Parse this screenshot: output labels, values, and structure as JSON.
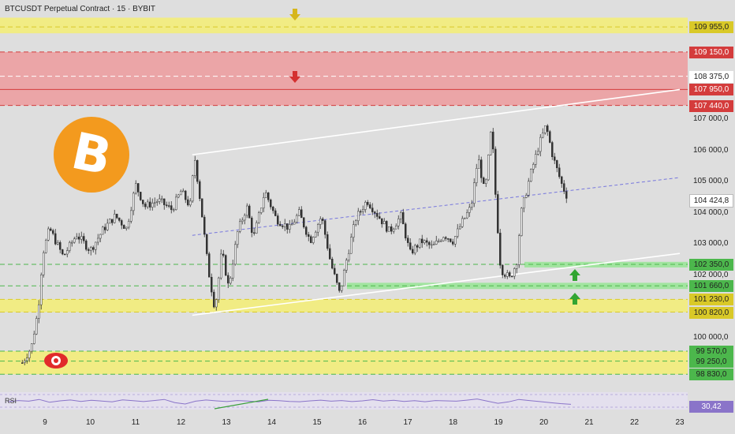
{
  "header": {
    "title": "BTCUSDT Perpetual Contract · 15 · BYBIT"
  },
  "indicator": {
    "label": "RSI",
    "value": "30,42"
  },
  "colors": {
    "zone_yellow": "#f1ec7e",
    "zone_red": "#eba1a3",
    "zone_green": "#9ee49c",
    "red_line": "#e04848",
    "candle_up": "#333333",
    "candle_down": "#333333",
    "trend_white": "#ffffff",
    "mid_line": "#7777dd",
    "rsi_line": "#8a74c9"
  },
  "icons": {
    "logo": "bitcoin-logo",
    "eye": "eye-icon",
    "arrows": [
      "arrow-down-icon",
      "arrow-up-icon"
    ]
  },
  "chart_data": {
    "type": "candlestick",
    "title": "BTCUSDT Perpetual Contract · 15 · BYBIT",
    "ylim": [
      98550,
      110300
    ],
    "x_ticks": [
      "9",
      "10",
      "11",
      "12",
      "13",
      "14",
      "15",
      "16",
      "17",
      "18",
      "19",
      "20",
      "21",
      "22",
      "23"
    ],
    "y_ticks": [
      "107 000,0",
      "106 000,0",
      "105 000,0",
      "104 000,0",
      "103 000,0",
      "102 000,0",
      "100 000,0"
    ],
    "last_price": {
      "label": "104 424,8",
      "value": 104424.8
    },
    "levels": [
      {
        "label": "109 955,0",
        "value": 109955,
        "color": "#d9c928"
      },
      {
        "label": "109 150,0",
        "value": 109150,
        "color": "#d43c3c"
      },
      {
        "label": "108 375,0",
        "value": 108375,
        "color": "#ffffff"
      },
      {
        "label": "107 950,0",
        "value": 107950,
        "color": "#d43c3c"
      },
      {
        "label": "107 440,0",
        "value": 107440,
        "color": "#d43c3c"
      },
      {
        "label": "102 350,0",
        "value": 102350,
        "color": "#4cb74c"
      },
      {
        "label": "101 660,0",
        "value": 101660,
        "color": "#4cb74c"
      },
      {
        "label": "101 230,0",
        "value": 101230,
        "color": "#d9c928"
      },
      {
        "label": "100 820,0",
        "value": 100820,
        "color": "#d9c928"
      },
      {
        "label": "99 570,0",
        "value": 99570,
        "color": "#4cb74c"
      },
      {
        "label": "99 250,0",
        "value": 99250,
        "color": "#4cb74c"
      },
      {
        "label": "98 830,0",
        "value": 98830,
        "color": "#4cb74c"
      }
    ],
    "zones": [
      {
        "type": "supply",
        "from": 109750,
        "to": 110250,
        "color": "#f1ec7e"
      },
      {
        "type": "supply",
        "from": 107440,
        "to": 109150,
        "color": "#eba1a3"
      },
      {
        "type": "demand",
        "from": 102250,
        "to": 102430,
        "color": "#9ee49c"
      },
      {
        "type": "demand",
        "from": 101560,
        "to": 101760,
        "color": "#9ee49c"
      },
      {
        "type": "demand",
        "from": 100820,
        "to": 101230,
        "color": "#f1ec7e"
      },
      {
        "type": "demand",
        "from": 98830,
        "to": 99570,
        "color": "#f1ec7e"
      }
    ],
    "trendlines": [
      {
        "name": "channel-top",
        "points": [
          [
            12.25,
            105860
          ],
          [
            23.0,
            107950
          ]
        ]
      },
      {
        "name": "channel-mid",
        "points": [
          [
            12.25,
            103280
          ],
          [
            23.0,
            105130
          ]
        ]
      },
      {
        "name": "channel-bottom",
        "points": [
          [
            12.25,
            100720
          ],
          [
            23.0,
            102700
          ]
        ]
      }
    ],
    "price_path": [
      [
        8.5,
        99200
      ],
      [
        8.7,
        99700
      ],
      [
        8.85,
        100900
      ],
      [
        8.95,
        102700
      ],
      [
        9.1,
        103500
      ],
      [
        9.4,
        102600
      ],
      [
        9.7,
        103300
      ],
      [
        10.0,
        102800
      ],
      [
        10.3,
        103500
      ],
      [
        10.55,
        103900
      ],
      [
        10.8,
        103500
      ],
      [
        11.0,
        104900
      ],
      [
        11.2,
        104200
      ],
      [
        11.5,
        104400
      ],
      [
        11.8,
        104100
      ],
      [
        12.0,
        104700
      ],
      [
        12.2,
        104200
      ],
      [
        12.3,
        105800
      ],
      [
        12.45,
        104100
      ],
      [
        12.6,
        102200
      ],
      [
        12.75,
        100900
      ],
      [
        12.9,
        102800
      ],
      [
        13.05,
        101600
      ],
      [
        13.25,
        103400
      ],
      [
        13.45,
        104200
      ],
      [
        13.6,
        103200
      ],
      [
        13.85,
        104700
      ],
      [
        14.1,
        103800
      ],
      [
        14.4,
        103500
      ],
      [
        14.6,
        104000
      ],
      [
        14.85,
        103100
      ],
      [
        15.1,
        103900
      ],
      [
        15.3,
        102400
      ],
      [
        15.5,
        101400
      ],
      [
        15.65,
        102500
      ],
      [
        15.85,
        103800
      ],
      [
        16.1,
        104400
      ],
      [
        16.35,
        103900
      ],
      [
        16.6,
        103400
      ],
      [
        16.85,
        103900
      ],
      [
        17.05,
        102700
      ],
      [
        17.3,
        103100
      ],
      [
        17.55,
        102900
      ],
      [
        17.8,
        103300
      ],
      [
        18.0,
        103100
      ],
      [
        18.2,
        103700
      ],
      [
        18.4,
        104200
      ],
      [
        18.55,
        105800
      ],
      [
        18.7,
        104600
      ],
      [
        18.85,
        106800
      ],
      [
        18.95,
        104200
      ],
      [
        19.05,
        102200
      ],
      [
        19.25,
        101900
      ],
      [
        19.4,
        102400
      ],
      [
        19.5,
        104000
      ],
      [
        19.7,
        105200
      ],
      [
        19.9,
        106200
      ],
      [
        20.05,
        106800
      ],
      [
        20.2,
        105800
      ],
      [
        20.4,
        104900
      ],
      [
        20.55,
        104400
      ]
    ],
    "rsi": {
      "ylim": [
        0,
        100
      ],
      "last": 30.42,
      "values": [
        45,
        52,
        48,
        58,
        42,
        50,
        55,
        47,
        53,
        49,
        44,
        56,
        51,
        46,
        52,
        58,
        40,
        32,
        48,
        55,
        50,
        46,
        52,
        49,
        44,
        53,
        51,
        47,
        45,
        50,
        54,
        48,
        52,
        46,
        50,
        57,
        49,
        53,
        47,
        51,
        45,
        52,
        50,
        48,
        54,
        61,
        48,
        36,
        44,
        58,
        52,
        46,
        40,
        34,
        30
      ]
    }
  }
}
